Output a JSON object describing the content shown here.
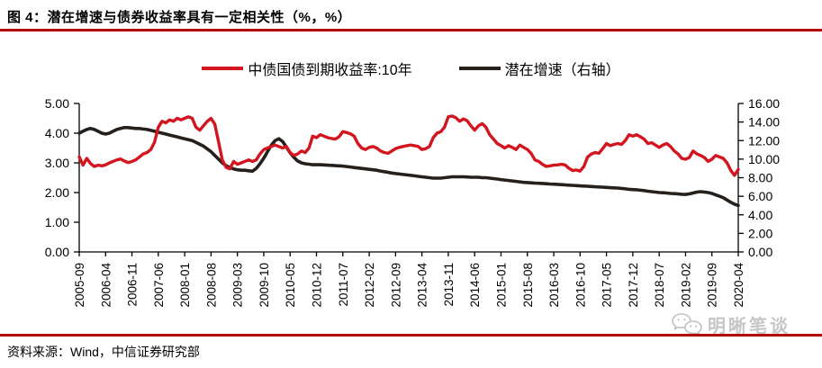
{
  "header": {
    "title": "图 4：潜在增速与债券收益率具有一定相关性（%，%）"
  },
  "legend": {
    "items": [
      {
        "label": "中债国债到期收益率:10年",
        "color": "#d2151e"
      },
      {
        "label": "潜在增速（右轴）",
        "color": "#26201d"
      }
    ]
  },
  "footer": {
    "source": "资料来源：Wind，中信证券研究部"
  },
  "watermark": {
    "label": "明晰笔谈",
    "icon": "chat-bubbles-icon"
  },
  "colors": {
    "rule_red": "#b20000",
    "line_red": "#d2151e",
    "line_black": "#26201d",
    "axis_black": "#000000",
    "watermark_gray": "#c6c6c6"
  },
  "chart_data": {
    "type": "line",
    "title": "潜在增速与债券收益率具有一定相关性",
    "x_unit": "month",
    "x_start": "2005-09",
    "x_end": "2020-04",
    "x_tick_every": 7,
    "x_tick_labels": [
      "2005-09",
      "2006-04",
      "2006-11",
      "2007-06",
      "2008-01",
      "2008-08",
      "2009-03",
      "2009-10",
      "2010-05",
      "2010-12",
      "2011-07",
      "2012-02",
      "2012-09",
      "2013-04",
      "2013-11",
      "2014-06",
      "2015-01",
      "2015-08",
      "2016-03",
      "2016-10",
      "2017-05",
      "2017-12",
      "2018-07",
      "2019-02",
      "2019-09",
      "2020-04"
    ],
    "grid": false,
    "legend_position": "top-center",
    "left_axis": {
      "min": 0,
      "max": 5,
      "tick_values": [
        0,
        1,
        2,
        3,
        4,
        5
      ],
      "tick_labels": [
        "0.00",
        "1.00",
        "2.00",
        "3.00",
        "4.00",
        "5.00"
      ]
    },
    "right_axis": {
      "min": 0,
      "max": 16,
      "tick_values": [
        0,
        2,
        4,
        6,
        8,
        10,
        12,
        14,
        16
      ],
      "tick_labels": [
        "0.00",
        "2.00",
        "4.00",
        "6.00",
        "8.00",
        "10.00",
        "12.00",
        "14.00",
        "16.00"
      ]
    },
    "series": [
      {
        "name": "中债国债到期收益率:10年",
        "axis": "left",
        "color": "#d2151e",
        "values": [
          3.2,
          2.92,
          3.15,
          2.98,
          2.88,
          2.92,
          2.9,
          2.93,
          3.0,
          3.05,
          3.1,
          3.13,
          3.06,
          3.01,
          3.05,
          3.1,
          3.2,
          3.3,
          3.35,
          3.45,
          3.7,
          4.2,
          4.4,
          4.35,
          4.45,
          4.4,
          4.5,
          4.45,
          4.5,
          4.55,
          4.5,
          4.2,
          4.1,
          4.25,
          4.4,
          4.5,
          4.3,
          3.7,
          3.1,
          2.85,
          2.8,
          3.05,
          2.95,
          3.0,
          3.05,
          3.1,
          3.05,
          3.1,
          3.3,
          3.45,
          3.5,
          3.55,
          3.6,
          3.55,
          3.5,
          3.55,
          3.35,
          3.25,
          3.3,
          3.4,
          3.35,
          3.5,
          3.9,
          3.85,
          3.95,
          3.9,
          3.85,
          3.82,
          3.8,
          3.88,
          4.05,
          4.02,
          3.98,
          3.9,
          3.65,
          3.5,
          3.45,
          3.52,
          3.55,
          3.5,
          3.4,
          3.35,
          3.32,
          3.4,
          3.48,
          3.52,
          3.55,
          3.58,
          3.6,
          3.58,
          3.55,
          3.45,
          3.48,
          3.55,
          3.85,
          4.0,
          4.05,
          4.2,
          4.55,
          4.58,
          4.52,
          4.4,
          4.48,
          4.42,
          4.25,
          4.1,
          4.25,
          4.32,
          4.2,
          3.95,
          3.8,
          3.65,
          3.58,
          3.5,
          3.58,
          3.52,
          3.45,
          3.6,
          3.52,
          3.45,
          3.32,
          3.1,
          3.05,
          2.95,
          2.88,
          2.9,
          2.92,
          2.93,
          2.95,
          2.93,
          2.82,
          2.74,
          2.76,
          2.72,
          2.88,
          3.2,
          3.3,
          3.35,
          3.32,
          3.48,
          3.65,
          3.58,
          3.62,
          3.65,
          3.62,
          3.75,
          3.95,
          3.9,
          3.95,
          3.88,
          3.8,
          3.65,
          3.68,
          3.6,
          3.52,
          3.6,
          3.65,
          3.55,
          3.4,
          3.3,
          3.15,
          3.12,
          3.18,
          3.4,
          3.3,
          3.25,
          3.18,
          3.05,
          3.12,
          3.25,
          3.2,
          3.15,
          3.0,
          2.75,
          2.58,
          2.78
        ]
      },
      {
        "name": "潜在增速（右轴）",
        "axis": "right",
        "color": "#26201d",
        "values": [
          12.8,
          13.0,
          13.2,
          13.3,
          13.2,
          13.0,
          12.8,
          12.7,
          12.8,
          13.0,
          13.2,
          13.3,
          13.4,
          13.4,
          13.35,
          13.3,
          13.3,
          13.25,
          13.2,
          13.1,
          13.0,
          12.9,
          12.8,
          12.7,
          12.6,
          12.5,
          12.4,
          12.3,
          12.2,
          12.1,
          12.0,
          11.8,
          11.6,
          11.4,
          11.1,
          10.8,
          10.4,
          10.0,
          9.6,
          9.3,
          9.1,
          8.95,
          8.85,
          8.8,
          8.8,
          8.75,
          8.7,
          9.0,
          9.5,
          10.1,
          10.8,
          11.5,
          12.0,
          12.2,
          11.9,
          11.3,
          10.7,
          10.2,
          9.8,
          9.6,
          9.5,
          9.45,
          9.4,
          9.4,
          9.4,
          9.38,
          9.35,
          9.33,
          9.3,
          9.28,
          9.25,
          9.2,
          9.15,
          9.1,
          9.05,
          9.0,
          8.95,
          8.9,
          8.85,
          8.8,
          8.72,
          8.65,
          8.58,
          8.5,
          8.45,
          8.4,
          8.35,
          8.3,
          8.25,
          8.2,
          8.15,
          8.1,
          8.05,
          8.0,
          7.95,
          7.95,
          7.95,
          8.0,
          8.05,
          8.1,
          8.1,
          8.1,
          8.1,
          8.08,
          8.05,
          8.05,
          8.05,
          8.0,
          8.0,
          7.95,
          7.9,
          7.85,
          7.8,
          7.75,
          7.7,
          7.65,
          7.6,
          7.55,
          7.5,
          7.48,
          7.45,
          7.42,
          7.4,
          7.38,
          7.35,
          7.32,
          7.3,
          7.28,
          7.25,
          7.22,
          7.2,
          7.18,
          7.15,
          7.12,
          7.1,
          7.08,
          7.05,
          7.02,
          7.0,
          6.98,
          6.95,
          6.92,
          6.9,
          6.88,
          6.85,
          6.8,
          6.75,
          6.72,
          6.7,
          6.65,
          6.6,
          6.55,
          6.5,
          6.45,
          6.4,
          6.38,
          6.35,
          6.3,
          6.28,
          6.25,
          6.22,
          6.2,
          6.25,
          6.35,
          6.45,
          6.5,
          6.45,
          6.4,
          6.3,
          6.15,
          6.0,
          5.85,
          5.6,
          5.35,
          5.15,
          5.0
        ]
      }
    ]
  }
}
